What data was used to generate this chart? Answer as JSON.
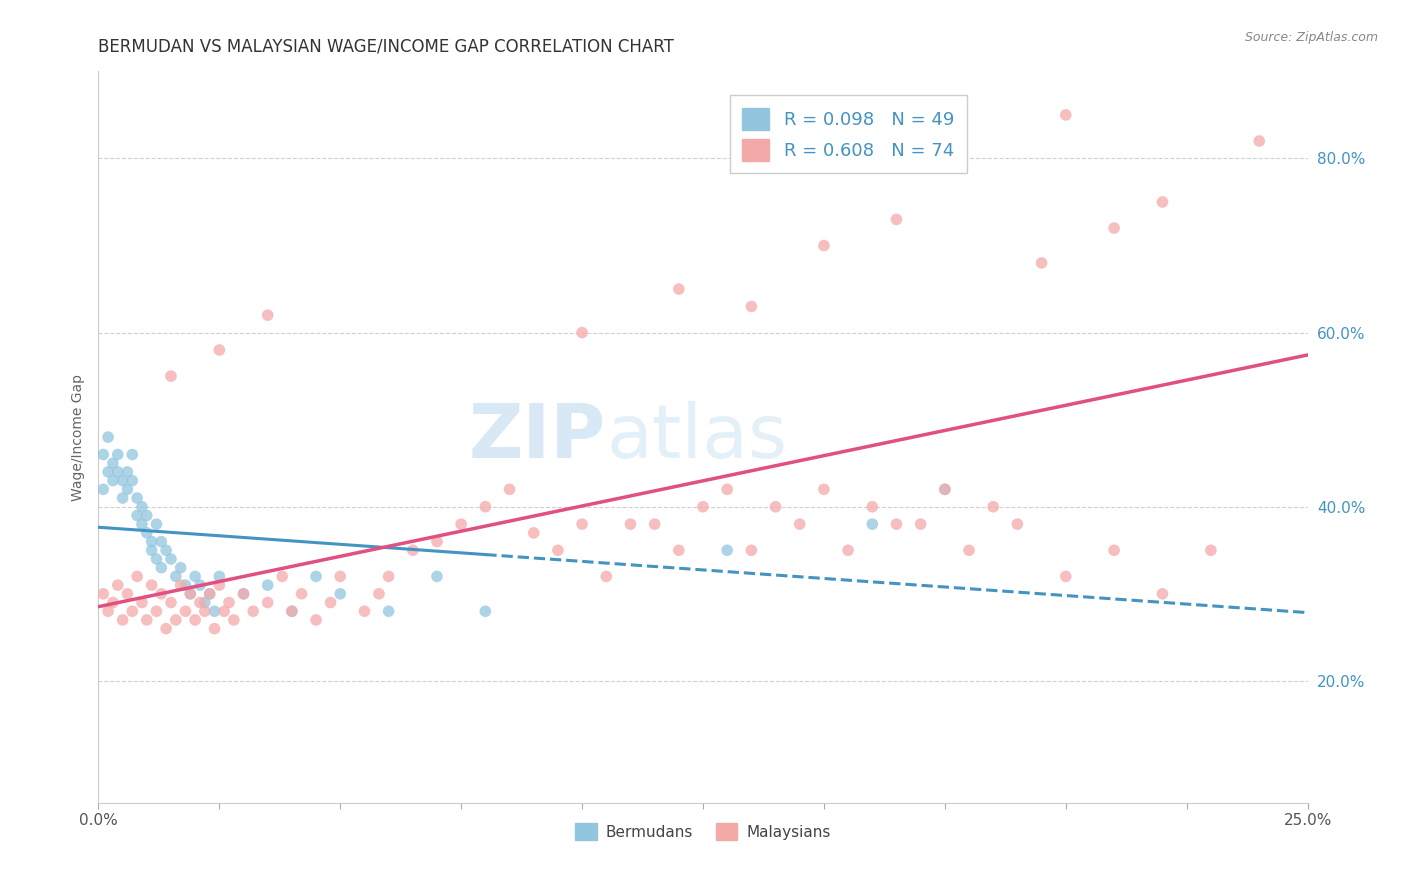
{
  "title": "BERMUDAN VS MALAYSIAN WAGE/INCOME GAP CORRELATION CHART",
  "source": "Source: ZipAtlas.com",
  "ylabel": "Wage/Income Gap",
  "legend_labels": [
    "Bermudans",
    "Malaysians"
  ],
  "legend_r": [
    0.098,
    0.608
  ],
  "legend_n": [
    49,
    74
  ],
  "blue_dot_color": "#92c5de",
  "pink_dot_color": "#f4a9a9",
  "blue_line_color": "#4393c3",
  "pink_line_color": "#e05080",
  "watermark_zip": "ZIP",
  "watermark_atlas": "atlas",
  "xmin": 0.0,
  "xmax": 0.25,
  "ymin": 0.06,
  "ymax": 0.9,
  "right_yticks": [
    0.2,
    0.4,
    0.6,
    0.8
  ],
  "right_ytick_labels": [
    "20.0%",
    "40.0%",
    "60.0%",
    "80.0%"
  ],
  "xtick_positions": [
    0.0,
    0.025,
    0.05,
    0.075,
    0.1,
    0.125,
    0.15,
    0.175,
    0.2,
    0.225,
    0.25
  ],
  "xtick_show_labels": [
    0.0,
    0.25
  ],
  "xtick_label_map": {
    "0.0": "0.0%",
    "0.25": "25.0%"
  },
  "blue_x": [
    0.001,
    0.001,
    0.002,
    0.002,
    0.003,
    0.003,
    0.004,
    0.004,
    0.005,
    0.005,
    0.006,
    0.006,
    0.007,
    0.007,
    0.008,
    0.008,
    0.009,
    0.009,
    0.01,
    0.01,
    0.011,
    0.011,
    0.012,
    0.012,
    0.013,
    0.013,
    0.014,
    0.015,
    0.016,
    0.017,
    0.018,
    0.019,
    0.02,
    0.021,
    0.022,
    0.023,
    0.024,
    0.025,
    0.03,
    0.035,
    0.04,
    0.045,
    0.05,
    0.06,
    0.07,
    0.08,
    0.13,
    0.16,
    0.175
  ],
  "blue_y": [
    0.42,
    0.46,
    0.48,
    0.44,
    0.45,
    0.43,
    0.46,
    0.44,
    0.43,
    0.41,
    0.42,
    0.44,
    0.46,
    0.43,
    0.41,
    0.39,
    0.4,
    0.38,
    0.39,
    0.37,
    0.35,
    0.36,
    0.34,
    0.38,
    0.36,
    0.33,
    0.35,
    0.34,
    0.32,
    0.33,
    0.31,
    0.3,
    0.32,
    0.31,
    0.29,
    0.3,
    0.28,
    0.32,
    0.3,
    0.31,
    0.28,
    0.32,
    0.3,
    0.28,
    0.32,
    0.28,
    0.35,
    0.38,
    0.42
  ],
  "pink_x": [
    0.001,
    0.002,
    0.003,
    0.004,
    0.005,
    0.006,
    0.007,
    0.008,
    0.009,
    0.01,
    0.011,
    0.012,
    0.013,
    0.014,
    0.015,
    0.016,
    0.017,
    0.018,
    0.019,
    0.02,
    0.021,
    0.022,
    0.023,
    0.024,
    0.025,
    0.026,
    0.027,
    0.028,
    0.03,
    0.032,
    0.035,
    0.038,
    0.04,
    0.042,
    0.045,
    0.048,
    0.05,
    0.055,
    0.058,
    0.06,
    0.065,
    0.07,
    0.075,
    0.08,
    0.085,
    0.09,
    0.095,
    0.1,
    0.105,
    0.11,
    0.115,
    0.12,
    0.125,
    0.13,
    0.135,
    0.14,
    0.145,
    0.15,
    0.155,
    0.16,
    0.165,
    0.17,
    0.175,
    0.18,
    0.185,
    0.19,
    0.2,
    0.21,
    0.22,
    0.23,
    0.015,
    0.025,
    0.035,
    0.2
  ],
  "pink_y": [
    0.3,
    0.28,
    0.29,
    0.31,
    0.27,
    0.3,
    0.28,
    0.32,
    0.29,
    0.27,
    0.31,
    0.28,
    0.3,
    0.26,
    0.29,
    0.27,
    0.31,
    0.28,
    0.3,
    0.27,
    0.29,
    0.28,
    0.3,
    0.26,
    0.31,
    0.28,
    0.29,
    0.27,
    0.3,
    0.28,
    0.29,
    0.32,
    0.28,
    0.3,
    0.27,
    0.29,
    0.32,
    0.28,
    0.3,
    0.32,
    0.35,
    0.36,
    0.38,
    0.4,
    0.42,
    0.37,
    0.35,
    0.38,
    0.32,
    0.38,
    0.38,
    0.35,
    0.4,
    0.42,
    0.35,
    0.4,
    0.38,
    0.42,
    0.35,
    0.4,
    0.38,
    0.38,
    0.42,
    0.35,
    0.4,
    0.38,
    0.32,
    0.35,
    0.3,
    0.35,
    0.55,
    0.58,
    0.62,
    0.85
  ],
  "pink_x_high": [
    0.1,
    0.12,
    0.135,
    0.15,
    0.165,
    0.195,
    0.21,
    0.22,
    0.24
  ],
  "pink_y_high": [
    0.6,
    0.65,
    0.63,
    0.7,
    0.73,
    0.68,
    0.72,
    0.75,
    0.82
  ]
}
